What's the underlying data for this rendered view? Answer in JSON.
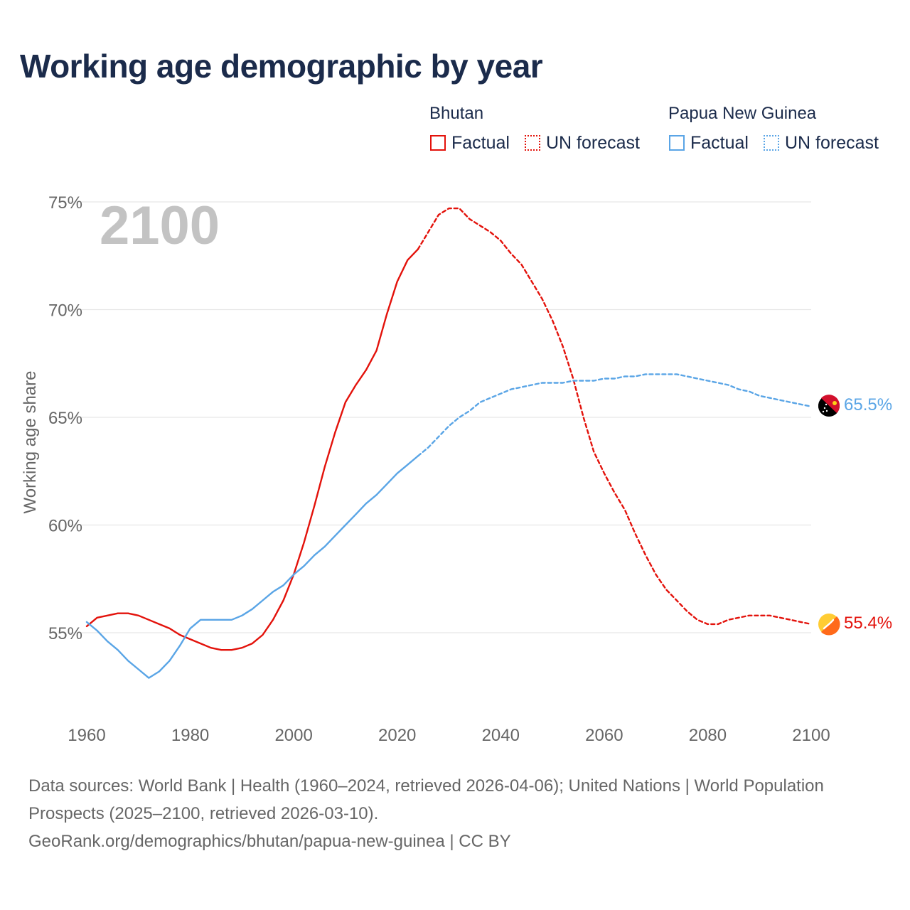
{
  "title": "Working age demographic by year",
  "year_watermark": "2100",
  "legend": {
    "groups": [
      {
        "country": "Bhutan",
        "color": "#e3120b",
        "factual": "Factual",
        "forecast": "UN forecast"
      },
      {
        "country": "Papua New Guinea",
        "color": "#5aa5e6",
        "factual": "Factual",
        "forecast": "UN forecast"
      }
    ]
  },
  "end_labels": {
    "bhutan": "55.4%",
    "png": "65.5%"
  },
  "sources": {
    "line1": "Data sources: World Bank | Health (1960–2024, retrieved 2026-04-06); United Nations | World Population Prospects (2025–2100, retrieved 2026-03-10).",
    "line2": "GeoRank.org/demographics/bhutan/papua-new-guinea | CC BY"
  },
  "chart_data": {
    "type": "line",
    "title": "Working age demographic by year",
    "xlabel": "",
    "ylabel": "Working age share",
    "xlim": [
      1960,
      2100
    ],
    "ylim": [
      51.7,
      76
    ],
    "x_ticks": [
      1960,
      1980,
      2000,
      2020,
      2040,
      2060,
      2080,
      2100
    ],
    "x_tick_labels": [
      "1960",
      "1980",
      "2000",
      "2020",
      "2040",
      "2060",
      "2080",
      "2100"
    ],
    "y_ticks": [
      55,
      60,
      65,
      70,
      75
    ],
    "y_tick_labels": [
      "55%",
      "60%",
      "65%",
      "70%",
      "75%"
    ],
    "factual_end_year": 2024,
    "series": [
      {
        "name": "Bhutan",
        "color": "#e3120b",
        "x": [
          1960,
          1962,
          1964,
          1966,
          1968,
          1970,
          1972,
          1974,
          1976,
          1978,
          1980,
          1982,
          1984,
          1986,
          1988,
          1990,
          1992,
          1994,
          1996,
          1998,
          2000,
          2002,
          2004,
          2006,
          2008,
          2010,
          2012,
          2014,
          2016,
          2018,
          2020,
          2022,
          2024,
          2026,
          2028,
          2030,
          2032,
          2034,
          2036,
          2038,
          2040,
          2042,
          2044,
          2046,
          2048,
          2050,
          2052,
          2054,
          2056,
          2058,
          2060,
          2062,
          2064,
          2066,
          2068,
          2070,
          2072,
          2074,
          2076,
          2078,
          2080,
          2082,
          2084,
          2086,
          2088,
          2090,
          2092,
          2094,
          2096,
          2098,
          2100
        ],
        "values": [
          55.3,
          55.7,
          55.8,
          55.9,
          55.9,
          55.8,
          55.6,
          55.4,
          55.2,
          54.9,
          54.7,
          54.5,
          54.3,
          54.2,
          54.2,
          54.3,
          54.5,
          54.9,
          55.6,
          56.5,
          57.7,
          59.2,
          60.9,
          62.7,
          64.3,
          65.7,
          66.5,
          67.2,
          68.1,
          69.8,
          71.3,
          72.3,
          72.8,
          73.6,
          74.4,
          74.7,
          74.7,
          74.2,
          73.9,
          73.6,
          73.2,
          72.6,
          72.1,
          71.3,
          70.5,
          69.5,
          68.3,
          66.8,
          65.0,
          63.4,
          62.4,
          61.5,
          60.7,
          59.6,
          58.6,
          57.7,
          57.0,
          56.5,
          56.0,
          55.6,
          55.4,
          55.4,
          55.6,
          55.7,
          55.8,
          55.8,
          55.8,
          55.7,
          55.6,
          55.5,
          55.4
        ]
      },
      {
        "name": "Papua New Guinea",
        "color": "#5aa5e6",
        "x": [
          1960,
          1962,
          1964,
          1966,
          1968,
          1970,
          1972,
          1974,
          1976,
          1978,
          1980,
          1982,
          1984,
          1986,
          1988,
          1990,
          1992,
          1994,
          1996,
          1998,
          2000,
          2002,
          2004,
          2006,
          2008,
          2010,
          2012,
          2014,
          2016,
          2018,
          2020,
          2022,
          2024,
          2026,
          2028,
          2030,
          2032,
          2034,
          2036,
          2038,
          2040,
          2042,
          2044,
          2046,
          2048,
          2050,
          2052,
          2054,
          2056,
          2058,
          2060,
          2062,
          2064,
          2066,
          2068,
          2070,
          2072,
          2074,
          2076,
          2078,
          2080,
          2082,
          2084,
          2086,
          2088,
          2090,
          2092,
          2094,
          2096,
          2098,
          2100
        ],
        "values": [
          55.5,
          55.1,
          54.6,
          54.2,
          53.7,
          53.3,
          52.9,
          53.2,
          53.7,
          54.4,
          55.2,
          55.6,
          55.6,
          55.6,
          55.6,
          55.8,
          56.1,
          56.5,
          56.9,
          57.2,
          57.7,
          58.1,
          58.6,
          59.0,
          59.5,
          60.0,
          60.5,
          61.0,
          61.4,
          61.9,
          62.4,
          62.8,
          63.2,
          63.6,
          64.1,
          64.6,
          65.0,
          65.3,
          65.7,
          65.9,
          66.1,
          66.3,
          66.4,
          66.5,
          66.6,
          66.6,
          66.6,
          66.7,
          66.7,
          66.7,
          66.8,
          66.8,
          66.9,
          66.9,
          67.0,
          67.0,
          67.0,
          67.0,
          66.9,
          66.8,
          66.7,
          66.6,
          66.5,
          66.3,
          66.2,
          66.0,
          65.9,
          65.8,
          65.7,
          65.6,
          65.5
        ]
      }
    ]
  }
}
